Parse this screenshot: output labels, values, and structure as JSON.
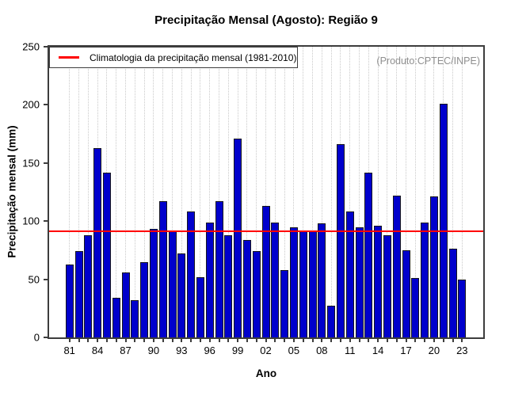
{
  "title": "Precipitação Mensal (Agosto): Região 9",
  "annotation": "(Produto:CPTEC/INPE)",
  "legend": {
    "label": "Climatologia da precipitação mensal (1981-2010)"
  },
  "axes": {
    "xlabel": "Ano",
    "ylabel": "Precipitação mensal (mm)"
  },
  "chart_data": {
    "type": "bar",
    "title": "Precipitação Mensal (Agosto): Região 9",
    "xlabel": "Ano",
    "ylabel": "Precipitação mensal (mm)",
    "ylim": [
      0,
      250
    ],
    "yticks": [
      0,
      50,
      100,
      150,
      200,
      250
    ],
    "categories": [
      1981,
      1982,
      1983,
      1984,
      1985,
      1986,
      1987,
      1988,
      1989,
      1990,
      1991,
      1992,
      1993,
      1994,
      1995,
      1996,
      1997,
      1998,
      1999,
      2000,
      2001,
      2002,
      2003,
      2004,
      2005,
      2006,
      2007,
      2008,
      2009,
      2010,
      2011,
      2012,
      2013,
      2014,
      2015,
      2016,
      2017,
      2018,
      2019,
      2020,
      2021,
      2022,
      2023
    ],
    "values": [
      63,
      74,
      88,
      163,
      142,
      34,
      56,
      32,
      65,
      93,
      117,
      92,
      72,
      108,
      52,
      99,
      117,
      88,
      171,
      84,
      74,
      113,
      99,
      58,
      95,
      92,
      91,
      98,
      27,
      166,
      108,
      95,
      142,
      96,
      88,
      122,
      75,
      51,
      99,
      121,
      201,
      76,
      50
    ],
    "xtick_every": 3,
    "xtick_labels": [
      "81",
      "84",
      "87",
      "90",
      "93",
      "96",
      "99",
      "02",
      "05",
      "08",
      "11",
      "14",
      "17",
      "20",
      "23"
    ],
    "climatology_line": {
      "value": 91,
      "color": "#ff0000",
      "label": "Climatologia da precipitação mensal (1981-2010)"
    },
    "bar_color": "#0000cc",
    "bar_border_color": "#16161d",
    "grid": "vertical-dotted",
    "legend_position": "top-left",
    "annotation": "(Produto:CPTEC/INPE)"
  }
}
